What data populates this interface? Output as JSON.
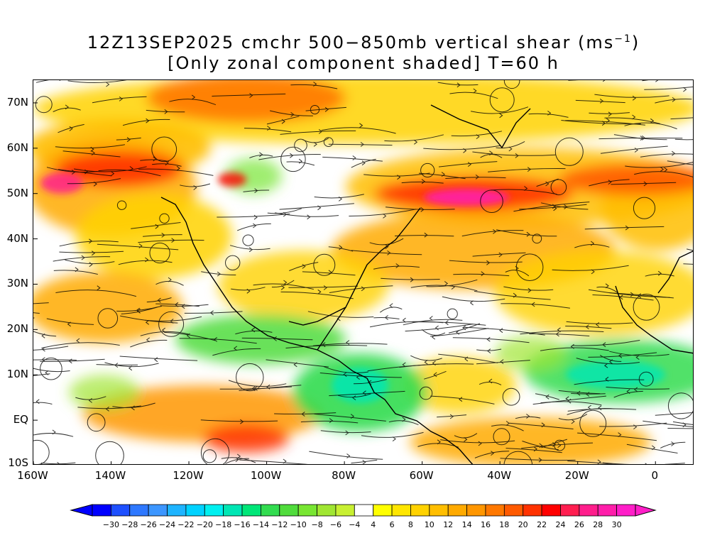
{
  "title": {
    "line1_prefix": "12Z13SEP2025 cmchr 500−850mb vertical shear (ms",
    "line1_sup": "−1",
    "line1_suffix": ")",
    "line2": "[Only zonal component shaded] T=60 h"
  },
  "map": {
    "lon_range": [
      -160,
      10
    ],
    "lat_range": [
      -10,
      75
    ],
    "lat_ticks": [
      {
        "value": 70,
        "label": "70N"
      },
      {
        "value": 60,
        "label": "60N"
      },
      {
        "value": 50,
        "label": "50N"
      },
      {
        "value": 40,
        "label": "40N"
      },
      {
        "value": 30,
        "label": "30N"
      },
      {
        "value": 20,
        "label": "20N"
      },
      {
        "value": 10,
        "label": "10N"
      },
      {
        "value": 0,
        "label": "EQ"
      },
      {
        "value": -10,
        "label": "10S"
      }
    ],
    "lon_ticks": [
      {
        "value": -160,
        "label": "160W"
      },
      {
        "value": -140,
        "label": "140W"
      },
      {
        "value": -120,
        "label": "120W"
      },
      {
        "value": -100,
        "label": "100W"
      },
      {
        "value": -80,
        "label": "80W"
      },
      {
        "value": -60,
        "label": "60W"
      },
      {
        "value": -40,
        "label": "40W"
      },
      {
        "value": -20,
        "label": "20W"
      },
      {
        "value": 0,
        "label": "0"
      }
    ]
  },
  "colorbar": {
    "labels": [
      "−30",
      "−28",
      "−26",
      "−24",
      "−22",
      "−20",
      "−18",
      "−16",
      "−14",
      "−12",
      "−10",
      "−8",
      "−6",
      "−4",
      "4",
      "6",
      "8",
      "10",
      "12",
      "14",
      "16",
      "18",
      "20",
      "22",
      "24",
      "26",
      "28",
      "30"
    ],
    "colors": [
      "#0000ff",
      "#1e50ff",
      "#2e78ff",
      "#3c96ff",
      "#1eb4ff",
      "#00d2ff",
      "#00f0f0",
      "#00e6b4",
      "#00e678",
      "#32dc50",
      "#50dc3c",
      "#78e632",
      "#a0e632",
      "#c8f032",
      "#ffffff",
      "#ffff00",
      "#ffe600",
      "#ffd200",
      "#ffbe00",
      "#ffaa00",
      "#ff9600",
      "#ff7800",
      "#ff5a00",
      "#ff3200",
      "#ff0000",
      "#ff1e50",
      "#ff1e8c",
      "#ff1eaa",
      "#ff1ec8"
    ],
    "end_left_color": "#0000ff",
    "end_right_color": "#ff1ec8"
  }
}
